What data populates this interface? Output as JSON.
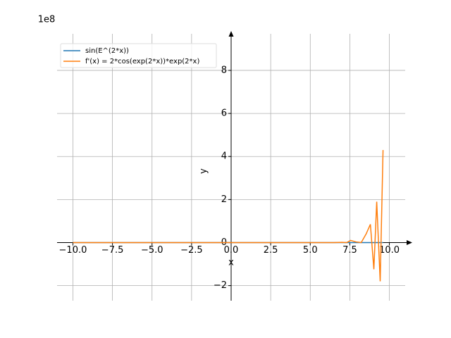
{
  "chart_data": {
    "type": "line",
    "offset_text": "1e8",
    "xlabel": "x",
    "ylabel": "y",
    "x": [
      -10,
      -5,
      0,
      5,
      6.5,
      7.0,
      7.3,
      7.55,
      7.9,
      8.22,
      8.53,
      8.8,
      9.02,
      9.2,
      9.42,
      9.6
    ],
    "series": [
      {
        "name": "sin(E^(2*x))",
        "color": "#1f77b4",
        "values": [
          0,
          0,
          0,
          0,
          0,
          0,
          0,
          0,
          0,
          0,
          0,
          0,
          0,
          0,
          0,
          0
        ]
      },
      {
        "name": "f'(x) = 2*cos(exp(2*x))*exp(2*x)",
        "color": "#ff7f0e",
        "values": [
          0,
          0,
          0,
          0,
          0,
          0.01,
          0,
          0.1,
          0.03,
          0,
          0.4,
          0.85,
          -1.24,
          1.9,
          -1.8,
          4.3
        ]
      }
    ],
    "xlim": [
      -11,
      11
    ],
    "ylim": [
      -2.7,
      9.7
    ],
    "xticks": [
      {
        "value": -10,
        "label": "−10.0"
      },
      {
        "value": -7.5,
        "label": "−7.5"
      },
      {
        "value": -5,
        "label": "−5.0"
      },
      {
        "value": -2.5,
        "label": "−2.5"
      },
      {
        "value": 0,
        "label": "0.0"
      },
      {
        "value": 2.5,
        "label": "2.5"
      },
      {
        "value": 5,
        "label": "5.0"
      },
      {
        "value": 7.5,
        "label": "7.5"
      },
      {
        "value": 10,
        "label": "10.0"
      }
    ],
    "yticks": [
      {
        "value": -2,
        "label": "−2"
      },
      0,
      2,
      4,
      6,
      8
    ],
    "grid": true,
    "legend": "upper left"
  }
}
